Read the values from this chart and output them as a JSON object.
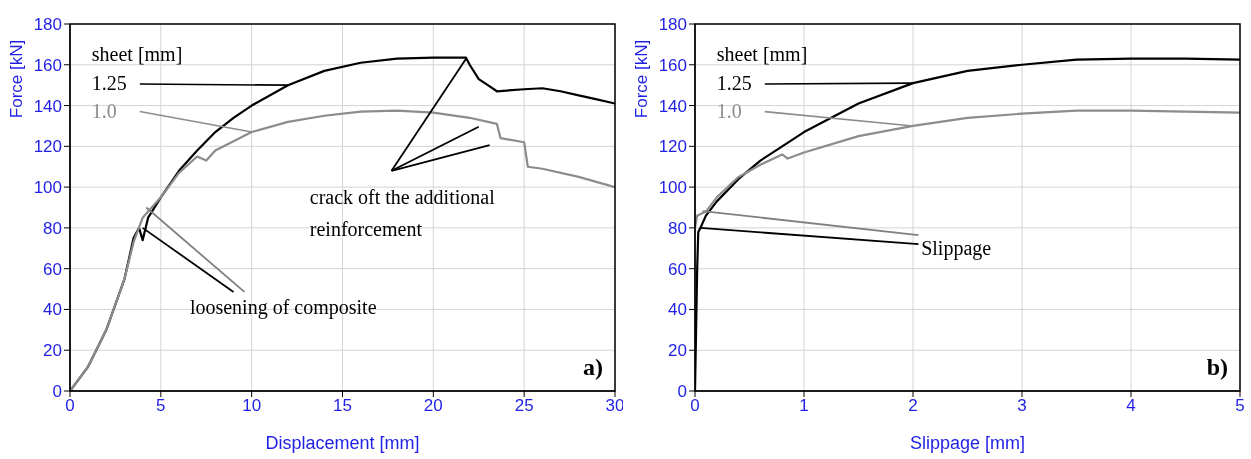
{
  "chart_data": [
    {
      "type": "line",
      "xlabel": "Displacement [mm]",
      "ylabel": "Force [kN]",
      "legend_title": "sheet [mm]",
      "legend": "top left",
      "grid": true,
      "xlim": [
        0,
        30
      ],
      "xticks": [
        0,
        5,
        10,
        15,
        20,
        25,
        30
      ],
      "ylim": [
        0,
        180
      ],
      "yticks": [
        0,
        20,
        40,
        60,
        80,
        100,
        120,
        140,
        160,
        180
      ],
      "series": [
        {
          "name": "1.25",
          "color": "#000000",
          "x": [
            0,
            1,
            2,
            3,
            3.5,
            3.8,
            4,
            4.3,
            5,
            6,
            7,
            8,
            9,
            10,
            12,
            14,
            16,
            18,
            20,
            21.8,
            22,
            22.5,
            23,
            23.5,
            25,
            26,
            27,
            28,
            29,
            30
          ],
          "values": [
            0,
            12,
            30,
            55,
            75,
            80,
            74,
            85,
            95,
            108,
            118,
            127,
            134,
            140,
            150,
            157,
            161,
            163,
            163.5,
            163.5,
            160,
            153,
            150,
            147,
            148,
            148.5,
            147,
            145,
            143,
            141
          ]
        },
        {
          "name": "1.0",
          "color": "#8c8c8c",
          "x": [
            0,
            1,
            2,
            3,
            3.5,
            4,
            4.3,
            5,
            6,
            7,
            7.5,
            8,
            10,
            12,
            14,
            16,
            18,
            20,
            22,
            23.5,
            23.7,
            25,
            25.2,
            26,
            28,
            30
          ],
          "values": [
            0,
            12,
            30,
            55,
            73,
            85,
            88,
            95,
            107,
            115,
            113,
            118,
            127,
            132,
            135,
            137,
            137.5,
            136.5,
            134,
            131,
            124,
            122,
            110,
            109,
            105,
            100
          ]
        }
      ],
      "annotations": [
        {
          "text": "crack oft the additional reinforcement",
          "x": 21.8,
          "y": 163
        },
        {
          "text": "loosening of composite",
          "x": 4,
          "y": 80
        },
        "a)"
      ]
    },
    {
      "type": "line",
      "xlabel": "Slippage [mm]",
      "ylabel": "Force [kN]",
      "legend_title": "sheet [mm]",
      "legend": "top left",
      "grid": true,
      "xlim": [
        0,
        5
      ],
      "xticks": [
        0,
        1,
        2,
        3,
        4,
        5
      ],
      "ylim": [
        0,
        180
      ],
      "yticks": [
        0,
        20,
        40,
        60,
        80,
        100,
        120,
        140,
        160,
        180
      ],
      "series": [
        {
          "name": "1.25",
          "color": "#000000",
          "x": [
            0,
            0.01,
            0.02,
            0.03,
            0.05,
            0.1,
            0.2,
            0.4,
            0.6,
            0.8,
            1,
            1.5,
            2,
            2.5,
            3,
            3.5,
            4,
            4.5,
            5
          ],
          "values": [
            0,
            30,
            60,
            78,
            80,
            86,
            93,
            104,
            113,
            120,
            127,
            141,
            151,
            157,
            160,
            162.5,
            163,
            163,
            162.5
          ]
        },
        {
          "name": "1.0",
          "color": "#8c8c8c",
          "x": [
            0,
            0.02,
            0.1,
            0.2,
            0.4,
            0.6,
            0.8,
            0.85,
            1,
            1.5,
            2,
            2.5,
            3,
            3.5,
            4,
            4.5,
            5
          ],
          "values": [
            80,
            86,
            88,
            95,
            105,
            111,
            116,
            114,
            117,
            125,
            130,
            134,
            136,
            137.5,
            137.5,
            137,
            136.5
          ]
        }
      ],
      "annotations": [
        {
          "text": "Slippage",
          "x": 0.05,
          "y": 80
        },
        "b)"
      ]
    }
  ]
}
